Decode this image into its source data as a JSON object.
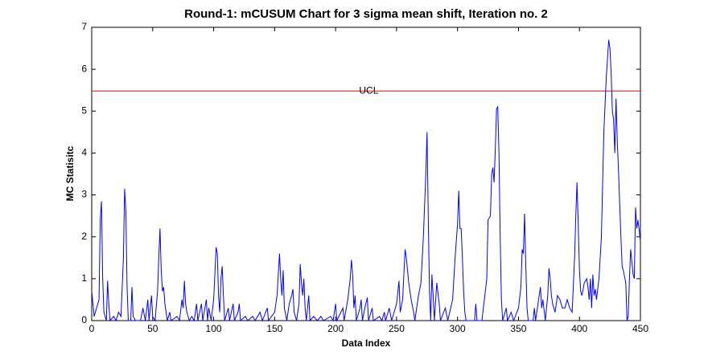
{
  "chart_data": {
    "type": "line",
    "title": "Round-1: mCUSUM Chart for 3 sigma mean shift, Iteration no. 2",
    "x_label": "Data Index",
    "y_label": "MC Statisitc",
    "x": [
      0,
      2,
      4,
      6,
      7,
      8,
      9,
      10,
      12,
      13,
      14,
      15,
      18,
      20,
      22,
      24,
      26,
      27,
      28,
      29,
      30,
      32,
      33,
      34,
      36,
      40,
      42,
      44,
      46,
      47,
      49,
      50,
      52,
      54,
      55,
      56,
      57,
      58,
      59,
      60,
      62,
      64,
      65,
      70,
      72,
      74,
      75,
      76,
      77,
      78,
      80,
      82,
      84,
      86,
      87,
      90,
      91,
      94,
      95,
      96,
      98,
      100,
      101,
      102,
      103,
      104,
      105,
      106,
      107,
      108,
      109,
      112,
      113,
      116,
      117,
      120,
      121,
      122,
      126,
      128,
      132,
      134,
      138,
      140,
      144,
      145,
      150,
      152,
      154,
      155,
      156,
      157,
      158,
      160,
      162,
      164,
      165,
      166,
      168,
      170,
      171,
      172,
      173,
      174,
      175,
      176,
      178,
      179,
      182,
      185,
      188,
      190,
      196,
      198,
      200,
      201,
      206,
      207,
      210,
      212,
      213,
      214,
      215,
      216,
      217,
      220,
      221,
      222,
      224,
      226,
      227,
      230,
      231,
      236,
      238,
      240,
      241,
      244,
      246,
      250,
      252,
      253,
      255,
      257,
      258,
      260,
      262,
      264,
      265,
      268,
      270,
      272,
      274,
      275,
      276,
      277,
      278,
      279,
      280,
      281,
      283,
      285,
      286,
      290,
      292,
      296,
      298,
      300,
      301,
      302,
      303,
      304,
      305,
      306,
      307,
      314,
      315,
      316,
      320,
      324,
      325,
      327,
      328,
      329,
      330,
      331,
      332,
      333,
      334,
      335,
      336,
      337,
      340,
      341,
      344,
      346,
      350,
      352,
      353,
      354,
      355,
      356,
      357,
      358,
      362,
      363,
      364,
      366,
      368,
      369,
      370,
      372,
      374,
      375,
      376,
      377,
      378,
      380,
      382,
      384,
      386,
      388,
      390,
      392,
      394,
      396,
      397,
      398,
      399,
      400,
      401,
      402,
      404,
      406,
      407,
      408,
      409,
      410,
      411,
      412,
      413,
      414,
      416,
      418,
      420,
      422,
      424,
      425,
      426,
      427,
      428,
      429,
      430,
      431,
      432,
      434,
      435,
      436,
      438,
      439,
      440,
      441,
      442,
      444,
      445,
      446,
      447,
      448,
      450
    ],
    "values": [
      0.7,
      0.1,
      0.3,
      0.5,
      2.4,
      2.85,
      1.0,
      0.2,
      0,
      0.95,
      0.4,
      0,
      0.1,
      0,
      0.2,
      0.1,
      1.5,
      3.15,
      2.6,
      0.8,
      0,
      0,
      0.8,
      0.1,
      0,
      0,
      0.3,
      0,
      0.5,
      0,
      0.6,
      0.1,
      0,
      0.7,
      1.5,
      2.2,
      1.2,
      0.7,
      0.8,
      0.4,
      0,
      0.2,
      0,
      0.1,
      0,
      0.5,
      0.3,
      0.95,
      0.4,
      0.2,
      0,
      0.1,
      0,
      0.4,
      0,
      0.4,
      0,
      0.5,
      0,
      0.3,
      0,
      0.5,
      1.1,
      1.75,
      1.6,
      0.6,
      0.2,
      1.0,
      1.3,
      0.6,
      0,
      0.3,
      0,
      0.4,
      0,
      0.2,
      0.4,
      0,
      0.1,
      0,
      0.1,
      0,
      0.2,
      0,
      0.3,
      0,
      0.2,
      0.6,
      1.6,
      1.0,
      0.6,
      1.2,
      0.3,
      0,
      0.4,
      0.6,
      0.75,
      0.2,
      0,
      0.4,
      1.35,
      0.9,
      0.6,
      1.0,
      0.3,
      0,
      0.6,
      0,
      0.1,
      0,
      0.1,
      0,
      0.1,
      0,
      0.4,
      0,
      0.3,
      0,
      0.5,
      1.0,
      1.45,
      1.1,
      0.3,
      0.6,
      0,
      0.3,
      0.5,
      0,
      0.3,
      0.55,
      0,
      0.3,
      0,
      0.1,
      0,
      0.2,
      0,
      0.3,
      0,
      0.4,
      0.95,
      0.2,
      0.5,
      1.7,
      1.5,
      0.9,
      0.5,
      0.2,
      0,
      0.6,
      0.9,
      2.0,
      3.5,
      4.5,
      2.5,
      0.7,
      0,
      1.1,
      0.6,
      0,
      0.9,
      0.4,
      0,
      0.3,
      0,
      0.5,
      1.5,
      2.3,
      3.1,
      2.2,
      2.2,
      1.5,
      0.7,
      0.2,
      0,
      0,
      0.4,
      0,
      0,
      1.0,
      2.4,
      2.5,
      3.5,
      3.65,
      3.3,
      4.1,
      5.05,
      5.1,
      4.0,
      2.0,
      0.5,
      0,
      0.3,
      0,
      0.2,
      0,
      0.3,
      0.8,
      1.7,
      1.6,
      2.55,
      1.3,
      0.3,
      0,
      0,
      0.3,
      0,
      0.4,
      0.8,
      0.3,
      0.5,
      0,
      0.6,
      1.25,
      1.0,
      0.6,
      0.4,
      0.2,
      0.6,
      0.5,
      0.3,
      0.3,
      0.5,
      0.3,
      0.2,
      1.5,
      2.5,
      3.3,
      2.3,
      1.2,
      0.7,
      0.6,
      0.9,
      1.0,
      0.8,
      0.5,
      1.0,
      0.3,
      1.1,
      0.6,
      0.75,
      0.5,
      1.0,
      2.0,
      4.5,
      5.8,
      6.7,
      6.5,
      5.9,
      5.0,
      4.8,
      4.0,
      5.3,
      4.3,
      3.6,
      2.0,
      1.3,
      1.2,
      0.9,
      0,
      0.1,
      1.0,
      1.7,
      1.1,
      1.0,
      2.7,
      2.2,
      2.4,
      1.9
    ],
    "color": "#0000ff",
    "ucl": {
      "value": 5.48,
      "label": "UCL",
      "color": "#ff0000"
    },
    "xlim": [
      0,
      450
    ],
    "xticks": [
      0,
      50,
      100,
      150,
      200,
      250,
      300,
      350,
      400,
      450
    ],
    "ylim": [
      0,
      7
    ],
    "yticks": [
      0,
      1,
      2,
      3,
      4,
      5,
      6,
      7
    ]
  }
}
